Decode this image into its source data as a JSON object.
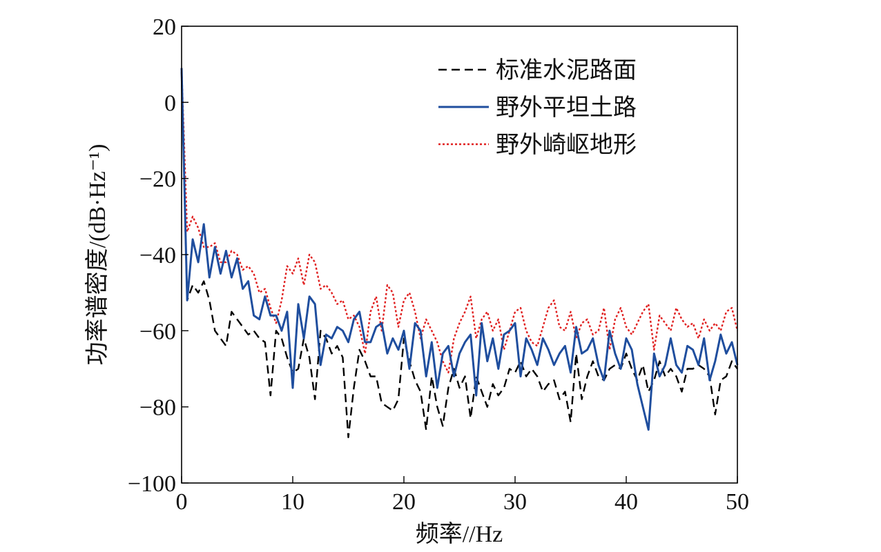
{
  "chart_data": {
    "type": "line",
    "xlabel": "频率//Hz",
    "ylabel": "功率谱密度/(dB·Hz⁻¹)",
    "xlim": [
      0,
      50
    ],
    "ylim": [
      -100,
      20
    ],
    "xticks": [
      0,
      10,
      20,
      30,
      40,
      50
    ],
    "yticks": [
      -100,
      -80,
      -60,
      -40,
      -20,
      0,
      20
    ],
    "xtick_labels": [
      "0",
      "10",
      "20",
      "30",
      "40",
      "50"
    ],
    "ytick_labels": [
      "−100",
      "−80",
      "−60",
      "−40",
      "−20",
      "0",
      "20"
    ],
    "grid": false,
    "legend_position": "top-right",
    "x": [
      0,
      0.5,
      1,
      1.5,
      2,
      2.5,
      3,
      3.5,
      4,
      4.5,
      5,
      5.5,
      6,
      6.5,
      7,
      7.5,
      8,
      8.5,
      9,
      9.5,
      10,
      10.5,
      11,
      11.5,
      12,
      12.5,
      13,
      13.5,
      14,
      14.5,
      15,
      15.5,
      16,
      16.5,
      17,
      17.5,
      18,
      18.5,
      19,
      19.5,
      20,
      20.5,
      21,
      21.5,
      22,
      22.5,
      23,
      23.5,
      24,
      24.5,
      25,
      25.5,
      26,
      26.5,
      27,
      27.5,
      28,
      28.5,
      29,
      29.5,
      30,
      30.5,
      31,
      31.5,
      32,
      32.5,
      33,
      33.5,
      34,
      34.5,
      35,
      35.5,
      36,
      36.5,
      37,
      37.5,
      38,
      38.5,
      39,
      39.5,
      40,
      40.5,
      41,
      41.5,
      42,
      42.5,
      43,
      43.5,
      44,
      44.5,
      45,
      45.5,
      46,
      46.5,
      47,
      47.5,
      48,
      48.5,
      49,
      49.5,
      50
    ],
    "series": [
      {
        "name": "标准水泥路面",
        "color": "#000000",
        "style": "dashed",
        "values": [
          8,
          -52,
          -48,
          -50,
          -47,
          -52,
          -60,
          -62,
          -64,
          -55,
          -57,
          -59,
          -61,
          -60,
          -62,
          -63,
          -77,
          -60,
          -62,
          -67,
          -71,
          -70,
          -62,
          -67,
          -78,
          -60,
          -62,
          -66,
          -64,
          -67,
          -88,
          -75,
          -65,
          -68,
          -72,
          -72,
          -79,
          -80,
          -81,
          -78,
          -62,
          -68,
          -73,
          -76,
          -86,
          -72,
          -80,
          -85,
          -75,
          -70,
          -75,
          -72,
          -83,
          -72,
          -76,
          -80,
          -74,
          -77,
          -75,
          -70,
          -71,
          -68,
          -72,
          -70,
          -72,
          -76,
          -74,
          -73,
          -78,
          -76,
          -84,
          -66,
          -78,
          -72,
          -68,
          -72,
          -73,
          -70,
          -69,
          -70,
          -66,
          -70,
          -73,
          -69,
          -76,
          -73,
          -68,
          -72,
          -70,
          -72,
          -76,
          -70,
          -70,
          -69,
          -70,
          -72,
          -82,
          -73,
          -72,
          -68,
          -70
        ]
      },
      {
        "name": "野外平坦土路",
        "color": "#1f4e9e",
        "style": "solid",
        "values": [
          9,
          -52,
          -36,
          -42,
          -32,
          -46,
          -38,
          -45,
          -39,
          -46,
          -41,
          -49,
          -47,
          -56,
          -57,
          -51,
          -56,
          -56,
          -60,
          -55,
          -75,
          -53,
          -62,
          -51,
          -53,
          -69,
          -61,
          -62,
          -59,
          -60,
          -63,
          -57,
          -55,
          -63,
          -63,
          -59,
          -58,
          -66,
          -62,
          -65,
          -60,
          -70,
          -58,
          -60,
          -72,
          -63,
          -75,
          -66,
          -64,
          -72,
          -66,
          -63,
          -61,
          -77,
          -58,
          -68,
          -62,
          -70,
          -61,
          -60,
          -58,
          -72,
          -62,
          -65,
          -69,
          -62,
          -65,
          -69,
          -66,
          -64,
          -71,
          -59,
          -66,
          -65,
          -62,
          -69,
          -73,
          -60,
          -66,
          -70,
          -62,
          -65,
          -74,
          -80,
          -86,
          -66,
          -72,
          -69,
          -62,
          -69,
          -71,
          -64,
          -65,
          -69,
          -62,
          -73,
          -68,
          -61,
          -66,
          -63,
          -69
        ]
      },
      {
        "name": "野外崎岖地形",
        "color": "#e02020",
        "style": "dotted",
        "values": [
          9,
          -34,
          -30,
          -33,
          -38,
          -38,
          -37,
          -42,
          -42,
          -39,
          -40,
          -44,
          -43,
          -45,
          -50,
          -49,
          -54,
          -58,
          -52,
          -43,
          -45,
          -41,
          -48,
          -40,
          -42,
          -49,
          -48,
          -50,
          -53,
          -52,
          -57,
          -56,
          -59,
          -66,
          -55,
          -51,
          -60,
          -48,
          -50,
          -59,
          -52,
          -50,
          -55,
          -62,
          -57,
          -60,
          -63,
          -68,
          -71,
          -62,
          -58,
          -55,
          -51,
          -62,
          -57,
          -55,
          -60,
          -57,
          -65,
          -60,
          -55,
          -54,
          -60,
          -63,
          -64,
          -59,
          -54,
          -52,
          -59,
          -60,
          -55,
          -62,
          -58,
          -57,
          -61,
          -60,
          -54,
          -65,
          -57,
          -54,
          -59,
          -61,
          -58,
          -55,
          -53,
          -65,
          -56,
          -58,
          -60,
          -54,
          -57,
          -59,
          -58,
          -62,
          -57,
          -60,
          -58,
          -60,
          -55,
          -54,
          -60
        ]
      }
    ]
  }
}
